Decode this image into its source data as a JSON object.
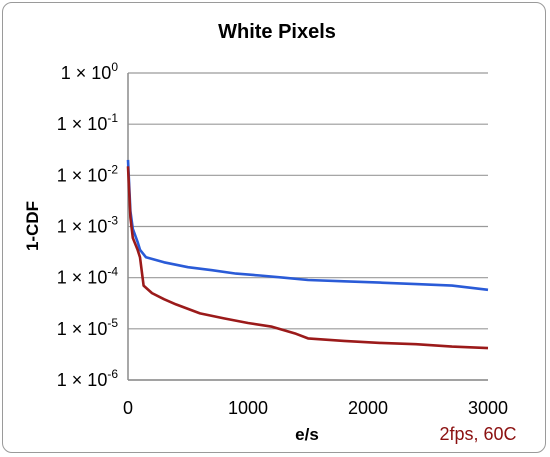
{
  "chart_data": {
    "type": "line",
    "title": "White Pixels",
    "xlabel": "e/s",
    "ylabel": "1-CDF",
    "xlim": [
      0,
      3000
    ],
    "ylim": [
      1e-06,
      1
    ],
    "yscale": "log",
    "grid": true,
    "x_ticks": [
      "0",
      "1000",
      "2000",
      "3000"
    ],
    "y_ticks": [
      {
        "value": 1,
        "base": "1 × 10",
        "exp": "0"
      },
      {
        "value": 0.1,
        "base": "1 × 10",
        "exp": "-1"
      },
      {
        "value": 0.01,
        "base": "1 × 10",
        "exp": "-2"
      },
      {
        "value": 0.001,
        "base": "1 × 10",
        "exp": "-3"
      },
      {
        "value": 0.0001,
        "base": "1 × 10",
        "exp": "-4"
      },
      {
        "value": 1e-05,
        "base": "1 × 10",
        "exp": "-5"
      },
      {
        "value": 1e-06,
        "base": "1 × 10",
        "exp": "-6"
      }
    ],
    "annotation": "2fps, 60C",
    "series": [
      {
        "color": "#2a5bd7",
        "points": [
          [
            0,
            0.02
          ],
          [
            20,
            0.002
          ],
          [
            40,
            0.0009
          ],
          [
            80,
            0.0005
          ],
          [
            100,
            0.00035
          ],
          [
            150,
            0.00025
          ],
          [
            300,
            0.0002
          ],
          [
            500,
            0.00016
          ],
          [
            700,
            0.00014
          ],
          [
            900,
            0.00012
          ],
          [
            1100,
            0.00011
          ],
          [
            1300,
            0.0001
          ],
          [
            1500,
            9e-05
          ],
          [
            1800,
            8.5e-05
          ],
          [
            2100,
            8e-05
          ],
          [
            2400,
            7.5e-05
          ],
          [
            2700,
            7e-05
          ],
          [
            3000,
            5.8e-05
          ]
        ]
      },
      {
        "color": "#9b1a1a",
        "points": [
          [
            0,
            0.015
          ],
          [
            20,
            0.0015
          ],
          [
            40,
            0.0006
          ],
          [
            80,
            0.00035
          ],
          [
            100,
            0.00025
          ],
          [
            130,
            7e-05
          ],
          [
            200,
            5e-05
          ],
          [
            300,
            3.8e-05
          ],
          [
            400,
            3e-05
          ],
          [
            600,
            2e-05
          ],
          [
            800,
            1.6e-05
          ],
          [
            1000,
            1.3e-05
          ],
          [
            1200,
            1.1e-05
          ],
          [
            1400,
            8e-06
          ],
          [
            1500,
            6.5e-06
          ],
          [
            1800,
            5.8e-06
          ],
          [
            2100,
            5.3e-06
          ],
          [
            2400,
            5e-06
          ],
          [
            2700,
            4.5e-06
          ],
          [
            3000,
            4.2e-06
          ]
        ]
      }
    ]
  }
}
